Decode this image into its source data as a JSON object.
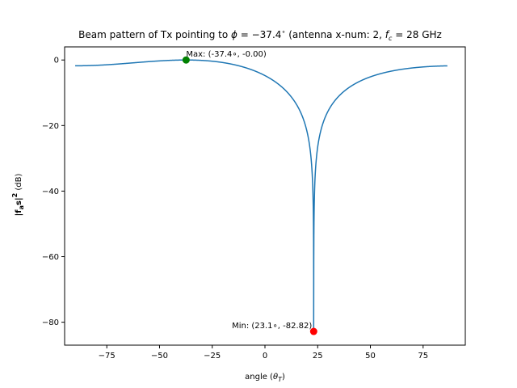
{
  "chart_data": {
    "type": "line",
    "title_parts": [
      "Beam pattern of Tx pointing to ",
      "ϕ",
      " = −37.4",
      "∘",
      " (antenna x-num: 2, ",
      "f",
      "c",
      " = 28 GHz"
    ],
    "xlabel_parts": [
      "angle (",
      "θ",
      "T",
      ")"
    ],
    "ylabel_parts": [
      "|",
      "f",
      "a",
      "s|",
      "2",
      " (dB)"
    ],
    "xlim": [
      -95,
      95
    ],
    "ylim": [
      -87,
      4
    ],
    "xticks": [
      -75,
      -50,
      -25,
      0,
      25,
      50,
      75
    ],
    "xtick_labels": [
      "−75",
      "−50",
      "−25",
      "0",
      "25",
      "50",
      "75"
    ],
    "yticks": [
      0,
      -20,
      -40,
      -60,
      -80
    ],
    "ytick_labels": [
      "0",
      "−20",
      "−40",
      "−60",
      "−80"
    ],
    "grid": false,
    "series": [
      {
        "color": "#1f77b4",
        "model": "two-element array pattern",
        "steering_angle_deg": -37.4,
        "null_angle_deg": 23.1,
        "x_range": [
          -90,
          86.5
        ],
        "min_db": -82.82
      }
    ],
    "markers": [
      {
        "x": -37.4,
        "y": 0.0,
        "color": "#008000",
        "label": "Max: (-37.4∘, -0.00)"
      },
      {
        "x": 23.1,
        "y": -82.82,
        "color": "#ff0000",
        "label": "Min: (23.1∘, -82.82)"
      }
    ]
  }
}
